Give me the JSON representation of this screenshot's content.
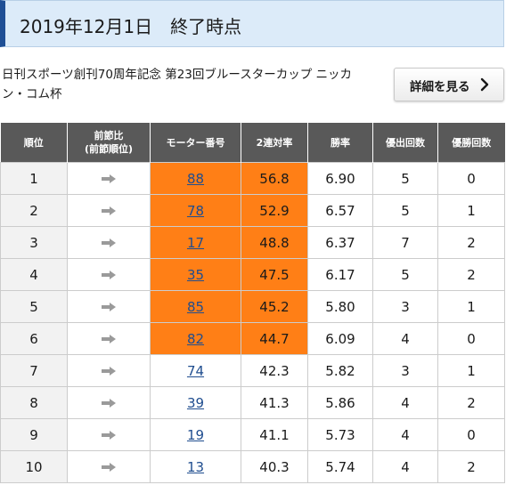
{
  "header": {
    "title": "2019年12月1日　終了時点"
  },
  "race": {
    "title": "日刊スポーツ創刊70周年記念 第23回ブルースターカップ ニッカン・コム杯"
  },
  "detail_button": {
    "label": "詳細を見る"
  },
  "table": {
    "headers": {
      "rank": "順位",
      "prev_line1": "前節比",
      "prev_line2": "(前節順位)",
      "motor": "モーター番号",
      "rate2": "2連対率",
      "win_rate": "勝率",
      "finals": "優出回数",
      "wins": "優勝回数"
    },
    "rows": [
      {
        "rank": "1",
        "trend": "same",
        "motor": "88",
        "rate2": "56.8",
        "win_rate": "6.90",
        "finals": "5",
        "wins": "0"
      },
      {
        "rank": "2",
        "trend": "same",
        "motor": "78",
        "rate2": "52.9",
        "win_rate": "6.57",
        "finals": "5",
        "wins": "1"
      },
      {
        "rank": "3",
        "trend": "same",
        "motor": "17",
        "rate2": "48.8",
        "win_rate": "6.37",
        "finals": "7",
        "wins": "2"
      },
      {
        "rank": "4",
        "trend": "same",
        "motor": "35",
        "rate2": "47.5",
        "win_rate": "6.17",
        "finals": "5",
        "wins": "2"
      },
      {
        "rank": "5",
        "trend": "same",
        "motor": "85",
        "rate2": "45.2",
        "win_rate": "5.80",
        "finals": "3",
        "wins": "1"
      },
      {
        "rank": "6",
        "trend": "same",
        "motor": "82",
        "rate2": "44.7",
        "win_rate": "6.09",
        "finals": "4",
        "wins": "0"
      },
      {
        "rank": "7",
        "trend": "same",
        "motor": "74",
        "rate2": "42.3",
        "win_rate": "5.82",
        "finals": "3",
        "wins": "1"
      },
      {
        "rank": "8",
        "trend": "same",
        "motor": "39",
        "rate2": "41.3",
        "win_rate": "5.86",
        "finals": "4",
        "wins": "2"
      },
      {
        "rank": "9",
        "trend": "same",
        "motor": "19",
        "rate2": "41.1",
        "win_rate": "5.73",
        "finals": "4",
        "wins": "0"
      },
      {
        "rank": "10",
        "trend": "same",
        "motor": "13",
        "rate2": "40.3",
        "win_rate": "5.74",
        "finals": "4",
        "wins": "2"
      }
    ]
  },
  "colors": {
    "header_accent": "#1f4f95",
    "header_bg": "#dcebf9",
    "table_header_bg": "#595959",
    "highlight": "#ff7f16",
    "link": "#1f4d8f",
    "arrow": "#9a9a9a"
  },
  "icons": {
    "trend_same": "arrow-right-icon",
    "button": "chevron-right-icon"
  }
}
